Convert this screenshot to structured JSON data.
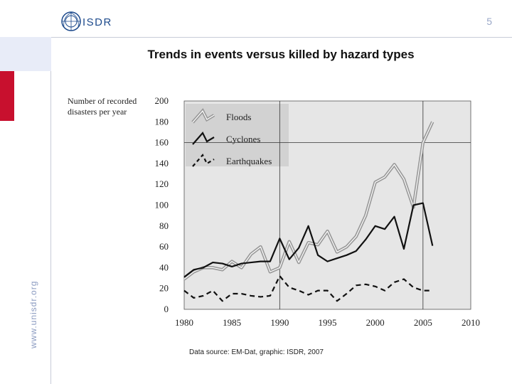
{
  "header": {
    "logo_text": "ISDR",
    "page_number": "5"
  },
  "sidebar": {
    "url": "www.unisdr.org"
  },
  "slide": {
    "title": "Trends in events versus killed by hazard types",
    "source": "Data source: EM-Dat, graphic: ISDR, 2007"
  },
  "colors": {
    "accent_red": "#c8102e",
    "plot_bg": "#e6e6e6",
    "floods": "#999999",
    "cyclones": "#111111",
    "earthquakes": "#111111"
  },
  "chart_data": {
    "type": "line",
    "ylabel": "Number of recorded disasters per year",
    "xlabel": "",
    "title": "",
    "xlim": [
      1980,
      2010
    ],
    "ylim": [
      0,
      200
    ],
    "xticks": [
      1980,
      1985,
      1990,
      1995,
      2000,
      2005,
      2010
    ],
    "yticks": [
      0,
      20,
      40,
      60,
      80,
      100,
      120,
      140,
      160,
      180,
      200
    ],
    "grid": "vertical lines at 1990, 2005 and horizontal at 160",
    "legend_position": "top-left",
    "series": [
      {
        "name": "Floods",
        "style": "double-gray",
        "x": [
          1980,
          1981,
          1982,
          1983,
          1984,
          1985,
          1986,
          1987,
          1988,
          1989,
          1990,
          1991,
          1992,
          1993,
          1994,
          1995,
          1996,
          1997,
          1998,
          1999,
          2000,
          2001,
          2002,
          2003,
          2004,
          2005,
          2006
        ],
        "values": [
          29,
          36,
          40,
          40,
          38,
          46,
          40,
          53,
          60,
          36,
          40,
          65,
          45,
          64,
          62,
          75,
          55,
          60,
          70,
          90,
          122,
          127,
          139,
          125,
          98,
          160,
          180
        ]
      },
      {
        "name": "Cyclones",
        "style": "solid-black",
        "x": [
          1980,
          1981,
          1982,
          1983,
          1984,
          1985,
          1986,
          1987,
          1988,
          1989,
          1990,
          1991,
          1992,
          1993,
          1994,
          1995,
          1996,
          1997,
          1998,
          1999,
          2000,
          2001,
          2002,
          2003,
          2004,
          2005,
          2006
        ],
        "values": [
          31,
          38,
          40,
          45,
          44,
          41,
          44,
          45,
          46,
          46,
          68,
          48,
          59,
          80,
          52,
          46,
          49,
          52,
          56,
          67,
          80,
          77,
          89,
          58,
          100,
          102,
          61
        ]
      },
      {
        "name": "Earthquakes",
        "style": "dashed-black",
        "x": [
          1980,
          1981,
          1982,
          1983,
          1984,
          1985,
          1986,
          1987,
          1988,
          1989,
          1990,
          1991,
          1992,
          1993,
          1994,
          1995,
          1996,
          1997,
          1998,
          1999,
          2000,
          2001,
          2002,
          2003,
          2004,
          2005,
          2006
        ],
        "values": [
          18,
          11,
          13,
          18,
          8,
          15,
          15,
          13,
          12,
          13,
          32,
          21,
          18,
          14,
          18,
          18,
          8,
          15,
          23,
          24,
          22,
          18,
          26,
          29,
          21,
          18,
          18
        ]
      }
    ]
  }
}
